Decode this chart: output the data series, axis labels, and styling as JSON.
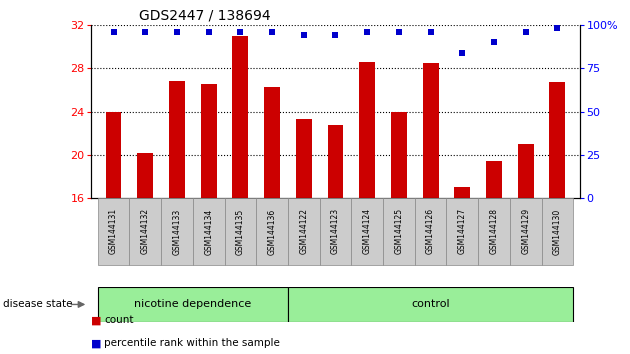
{
  "title": "GDS2447 / 138694",
  "samples": [
    "GSM144131",
    "GSM144132",
    "GSM144133",
    "GSM144134",
    "GSM144135",
    "GSM144136",
    "GSM144122",
    "GSM144123",
    "GSM144124",
    "GSM144125",
    "GSM144126",
    "GSM144127",
    "GSM144128",
    "GSM144129",
    "GSM144130"
  ],
  "counts": [
    24.0,
    20.2,
    26.8,
    26.5,
    31.0,
    26.3,
    23.3,
    22.8,
    28.6,
    24.0,
    28.5,
    17.0,
    19.4,
    21.0,
    26.7
  ],
  "percentile_values": [
    96,
    96,
    96,
    96,
    96,
    96,
    94,
    94,
    96,
    96,
    96,
    84,
    90,
    96,
    98
  ],
  "ylim_left": [
    16,
    32
  ],
  "ylim_right": [
    0,
    100
  ],
  "yticks_left": [
    16,
    20,
    24,
    28,
    32
  ],
  "yticks_right": [
    0,
    25,
    50,
    75,
    100
  ],
  "bar_color": "#cc0000",
  "dot_color": "#0000cc",
  "nicotine_label": "nicotine dependence",
  "control_label": "control",
  "disease_label": "disease state",
  "legend_count": "count",
  "legend_pct": "percentile rank within the sample",
  "group_bg_color": "#99ee99",
  "tick_bg_color": "#cccccc",
  "bar_width": 0.5,
  "n_nicotine": 6,
  "n_control": 9
}
